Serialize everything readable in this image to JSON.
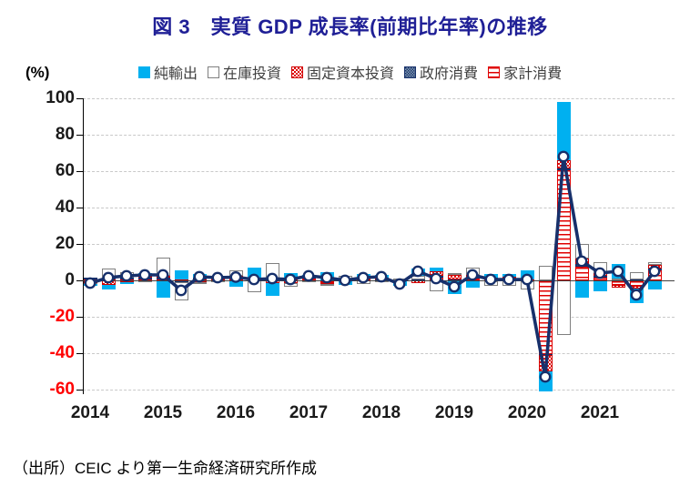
{
  "title": "図 3　実質 GDP 成長率(前期比年率)の推移",
  "y_unit": "(%)",
  "source": "（出所）CEIC より第一生命経済研究所作成",
  "colors": {
    "title_navy": "#1f1f96",
    "net_exports_cyan": "#00b0f0",
    "inventory_border_grey": "#7f7f7f",
    "pattern_red": "#e00000",
    "government_navy": "#1f3864",
    "gdp_line_navy": "#17306b",
    "negative_tick_red": "#ff0000",
    "gridline_grey": "#c9c9c9"
  },
  "chart_data": {
    "type": "bar",
    "subtype": "stacked-bar-with-line-overlay",
    "grid": "horizontal dashed",
    "legend_position": "top",
    "ylabel": "(%)",
    "ylim": [
      -60,
      100
    ],
    "ytick_step": 20,
    "yticks": [
      100,
      80,
      60,
      40,
      20,
      0,
      -20,
      -40,
      -60
    ],
    "year_labels": [
      "2014",
      "2015",
      "2016",
      "2017",
      "2018",
      "2019",
      "2020",
      "2021"
    ],
    "x_quarters": [
      "2014Q1",
      "2014Q2",
      "2014Q3",
      "2014Q4",
      "2015Q1",
      "2015Q2",
      "2015Q3",
      "2015Q4",
      "2016Q1",
      "2016Q2",
      "2016Q3",
      "2016Q4",
      "2017Q1",
      "2017Q2",
      "2017Q3",
      "2017Q4",
      "2018Q1",
      "2018Q2",
      "2018Q3",
      "2018Q4",
      "2019Q1",
      "2019Q2",
      "2019Q3",
      "2019Q4",
      "2020Q1",
      "2020Q2",
      "2020Q3",
      "2020Q4",
      "2021Q1",
      "2021Q2",
      "2021Q3",
      "2021Q4"
    ],
    "series": [
      {
        "key": "net_exports",
        "name": "純輸出",
        "style": "solid-cyan",
        "values": [
          -1.0,
          -2.5,
          -1.0,
          1.5,
          -9.5,
          5.0,
          2.0,
          1.5,
          -3.5,
          5.5,
          -7.0,
          3.5,
          0.5,
          4.5,
          -2.0,
          2.5,
          1.5,
          -2.5,
          4.0,
          2.0,
          -7.5,
          -4.0,
          2.0,
          1.5,
          5.0,
          -11.0,
          32.0,
          -9.5,
          -6.0,
          8.0,
          -8.0,
          -5.0
        ]
      },
      {
        "key": "inventory",
        "name": "在庫投資",
        "style": "white-grey-outline",
        "values": [
          -0.5,
          5.0,
          3.0,
          -1.0,
          10.0,
          -10.0,
          -0.5,
          -1.0,
          3.0,
          -6.5,
          8.5,
          -2.0,
          -0.5,
          -1.2,
          2.0,
          -2.0,
          -1.0,
          1.0,
          2.0,
          -6.0,
          1.0,
          4.0,
          -2.5,
          -3.0,
          -4.5,
          8.0,
          -30.0,
          8.0,
          6.0,
          1.0,
          4.0,
          1.5
        ]
      },
      {
        "key": "fixed_capital",
        "name": "固定資本投資",
        "style": "red-checker",
        "values": [
          -1.5,
          -2.5,
          -1.0,
          1.0,
          1.0,
          0.5,
          -0.8,
          0.5,
          0.5,
          0.3,
          -1.5,
          -1.5,
          0.7,
          -0.8,
          -0.7,
          0.5,
          0.5,
          -0.5,
          -1.5,
          2.5,
          2.5,
          1.2,
          -0.5,
          0.3,
          -0.5,
          -9.0,
          4.5,
          3.0,
          1.5,
          -1.5,
          -1.5,
          2.0
        ]
      },
      {
        "key": "government",
        "name": "政府消費",
        "style": "navy-dots",
        "values": [
          0.3,
          0.5,
          0.5,
          0.5,
          0.5,
          -0.3,
          0.3,
          0.3,
          0.3,
          0.2,
          0.3,
          0.2,
          0.3,
          0.0,
          0.2,
          0.2,
          0.3,
          0.2,
          0.3,
          0.5,
          0.3,
          0.3,
          0.3,
          0.2,
          0.2,
          -0.5,
          0.5,
          1.5,
          0.5,
          0.0,
          0.5,
          0.5
        ]
      },
      {
        "key": "household",
        "name": "家計消費",
        "style": "red-horizontal-lines",
        "values": [
          1.2,
          1.0,
          1.0,
          1.0,
          1.0,
          -0.7,
          1.0,
          0.2,
          1.5,
          1.0,
          0.7,
          0.3,
          1.5,
          -1.0,
          0.5,
          0.3,
          0.7,
          -0.2,
          0.2,
          2.0,
          0.2,
          1.5,
          1.2,
          1.5,
          0.3,
          -40.5,
          61.0,
          7.5,
          2.0,
          -2.5,
          -3.0,
          6.0
        ]
      }
    ],
    "stack_order_from_axis": [
      "household",
      "government",
      "fixed_capital",
      "inventory",
      "net_exports"
    ],
    "line": {
      "name": "実質GDP成長率",
      "marker": "white-circle-navy-ring",
      "values": [
        -1.5,
        1.5,
        2.5,
        3.0,
        3.0,
        -5.5,
        2.0,
        1.5,
        1.8,
        0.5,
        1.0,
        0.5,
        2.5,
        1.5,
        0.0,
        1.5,
        2.0,
        -2.0,
        5.0,
        1.0,
        -3.5,
        3.0,
        0.5,
        0.5,
        0.5,
        -53.0,
        68.0,
        10.5,
        4.0,
        5.0,
        -8.0,
        5.0
      ]
    }
  }
}
